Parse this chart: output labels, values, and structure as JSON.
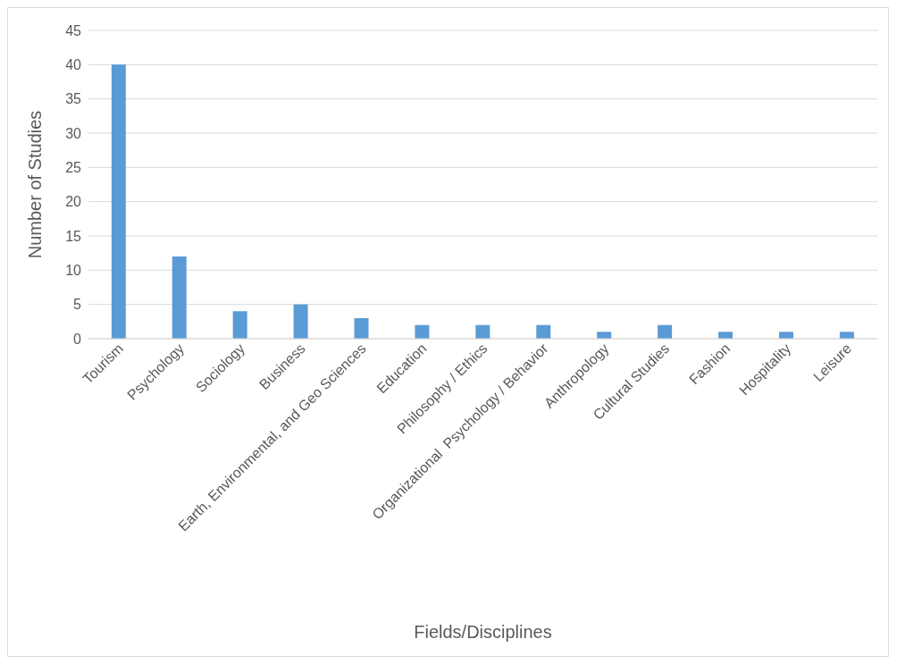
{
  "chart_data": {
    "type": "bar",
    "xlabel": "Fields/Disciplines",
    "ylabel": "Number of Studies",
    "categories": [
      "Tourism",
      "Psychology",
      "Sociology",
      "Business",
      "Earth, Environmental, and Geo Sciences",
      "Education",
      "Philosophy / Ethics",
      "Organizational  Psychology / Behavior",
      "Anthropology",
      "Cultural Studies",
      "Fashion",
      "Hospitality",
      "Leisure"
    ],
    "values": [
      40,
      12,
      4,
      5,
      3,
      2,
      2,
      2,
      1,
      2,
      1,
      1,
      1
    ],
    "color": "#5b9bd5",
    "ylim": [
      0,
      45
    ],
    "yticks": [
      0,
      5,
      10,
      15,
      20,
      25,
      30,
      35,
      40,
      45
    ],
    "grid": "y"
  }
}
